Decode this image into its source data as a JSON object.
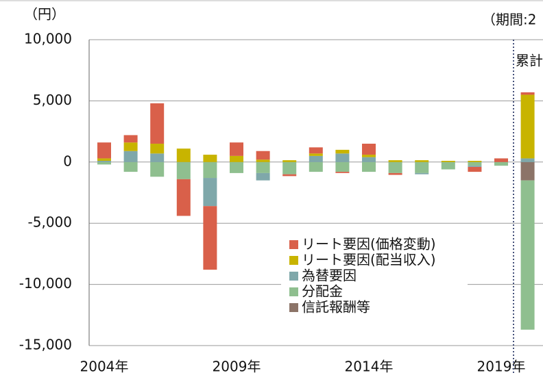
{
  "chart_data": {
    "type": "bar",
    "stacked": true,
    "unit_label": "（円）",
    "period_label": "（期間:2",
    "cumulative_label": "累計",
    "categories": [
      "2004年",
      null,
      null,
      null,
      null,
      "2009年",
      null,
      null,
      null,
      null,
      "2014年",
      null,
      null,
      null,
      null,
      "2019年",
      null
    ],
    "series": [
      {
        "name": "リート要因(価格変動)",
        "color": "#d9604a",
        "values": [
          1300,
          600,
          3300,
          -3000,
          -5200,
          1100,
          700,
          -150,
          500,
          -100,
          900,
          -150,
          0,
          0,
          -400,
          300,
          200
        ]
      },
      {
        "name": "リート要因(配当収入)",
        "color": "#c8b400",
        "values": [
          200,
          700,
          800,
          1100,
          600,
          500,
          200,
          150,
          200,
          300,
          200,
          150,
          150,
          100,
          100,
          0,
          5200
        ]
      },
      {
        "name": "為替要因",
        "color": "#7fa8aa",
        "values": [
          100,
          900,
          700,
          0,
          -2300,
          0,
          -600,
          0,
          500,
          700,
          400,
          0,
          -100,
          0,
          -100,
          0,
          300
        ]
      },
      {
        "name": "分配金",
        "color": "#8fbf8f",
        "values": [
          -200,
          -800,
          -1200,
          -1400,
          -1300,
          -900,
          -900,
          -1000,
          -800,
          -800,
          -800,
          -900,
          -900,
          -600,
          -300,
          -300,
          -12200
        ]
      },
      {
        "name": "信託報酬等",
        "color": "#8c7468",
        "values": [
          0,
          0,
          0,
          0,
          0,
          0,
          0,
          0,
          0,
          0,
          0,
          0,
          0,
          0,
          0,
          0,
          -1500
        ]
      }
    ],
    "ylim": [
      -15000,
      10000
    ],
    "yticks": [
      {
        "value": -15000,
        "label": "-15,000"
      },
      {
        "value": -10000,
        "label": "-10,000"
      },
      {
        "value": -5000,
        "label": "-5,000"
      },
      0,
      {
        "value": 5000,
        "label": "5,000"
      },
      {
        "value": 10000,
        "label": "10,000"
      }
    ],
    "grid": true
  }
}
